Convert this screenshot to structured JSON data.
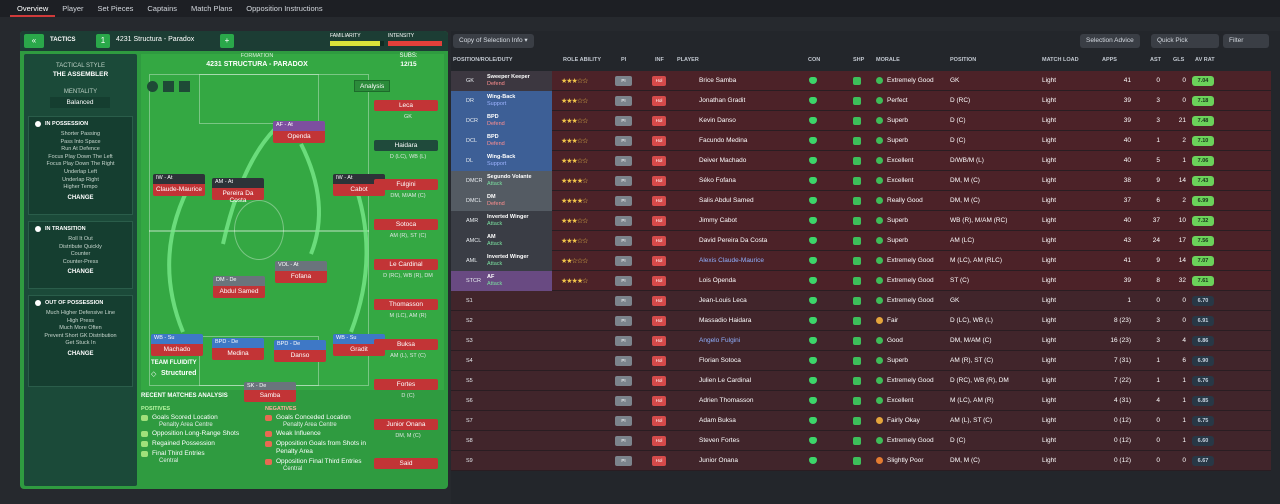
{
  "nav": {
    "tabs": [
      "Overview",
      "Player",
      "Set Pieces",
      "Captains",
      "Match Plans",
      "Opposition Instructions"
    ]
  },
  "tactics": {
    "label": "TACTICS",
    "slot": "1",
    "name": "4231 Structura - Paradox",
    "familiarity": "FAMILIARITY",
    "intensity": "INTENSITY",
    "formation_label": "FORMATION",
    "formation_name": "4231 STRUCTURA - PARADOX",
    "subs_label": "SUBS:",
    "subs_count": "12/15",
    "analysis": "Analysis"
  },
  "style": {
    "title": "TACTICAL STYLE",
    "name": "THE ASSEMBLER",
    "mentality_label": "MENTALITY",
    "mentality": "Balanced",
    "possession": {
      "title": "IN POSSESSION",
      "items": [
        "Shorter Passing",
        "Pass Into Space",
        "Run At Defence",
        "Focus Play Down The Left",
        "Focus Play Down The Right",
        "Underlap Left",
        "Underlap Right",
        "Higher Tempo"
      ],
      "change": "CHANGE"
    },
    "transition": {
      "title": "IN TRANSITION",
      "items": [
        "Roll It Out",
        "Distribute Quickly",
        "Counter",
        "Counter-Press"
      ],
      "change": "CHANGE"
    },
    "out": {
      "title": "OUT OF POSSESSION",
      "items": [
        "Much Higher Defensive Line",
        "High Press",
        "Much More Often",
        "Prevent Short GK Distribution",
        "Get Stuck In"
      ],
      "change": "CHANGE"
    }
  },
  "pitch": {
    "players": [
      {
        "role": "AF - At",
        "name": "Openda"
      },
      {
        "role": "IW - At",
        "name": "Claude-Maurice"
      },
      {
        "role": "AM - At",
        "name": "Pereira Da Costa"
      },
      {
        "role": "IW - At",
        "name": "Cabot"
      },
      {
        "role": "VOL - At",
        "name": "Fofana"
      },
      {
        "role": "DM - De",
        "name": "Abdul Samed"
      },
      {
        "role": "WB - Su",
        "name": "Machado"
      },
      {
        "role": "BPD - De",
        "name": "Medina"
      },
      {
        "role": "BPD - De",
        "name": "Danso"
      },
      {
        "role": "WB - Su",
        "name": "Gradit"
      },
      {
        "role": "SK - De",
        "name": "Samba"
      }
    ],
    "fluidity_label": "TEAM FLUIDITY",
    "fluidity": "Structured"
  },
  "subs": [
    {
      "name": "Leca",
      "pos": "GK"
    },
    {
      "name": "Haidara",
      "pos": "D (LC), WB (L)"
    },
    {
      "name": "Fulgini",
      "pos": "DM, M/AM (C)"
    },
    {
      "name": "Sotoca",
      "pos": "AM (R), ST (C)"
    },
    {
      "name": "Le Cardinal",
      "pos": "D (RC), WB (R), DM"
    },
    {
      "name": "Thomasson",
      "pos": "M (LC), AM (R)"
    },
    {
      "name": "Buksa",
      "pos": "AM (L), ST (C)"
    },
    {
      "name": "Fortes",
      "pos": "D (C)"
    },
    {
      "name": "Junior Onana",
      "pos": "DM, M (C)"
    },
    {
      "name": "Said",
      "pos": ""
    }
  ],
  "recent": {
    "title": "RECENT MATCHES ANALYSIS",
    "pos_label": "POSITIVES",
    "neg_label": "NEGATIVES",
    "positives": [
      {
        "t": "Goals Scored Location",
        "s": "Penalty Area Centre"
      },
      {
        "t": "Opposition Long-Range Shots",
        "s": ""
      },
      {
        "t": "Regained Possession",
        "s": ""
      },
      {
        "t": "Final Third Entries",
        "s": "Central"
      }
    ],
    "negatives": [
      {
        "t": "Goals Conceded Location",
        "s": "Penalty Area Centre"
      },
      {
        "t": "Weak Influence",
        "s": ""
      },
      {
        "t": "Opposition Goals from Shots in Penalty Area",
        "s": ""
      },
      {
        "t": "Opposition Final Third Entries",
        "s": "Central"
      }
    ]
  },
  "toolbar": {
    "copy": "Copy of Selection Info",
    "advice": "Selection Advice",
    "quickpick": "Quick Pick",
    "filter": "Filter"
  },
  "headers": [
    "POSITION/ROLE/DUTY",
    "ROLE ABILITY",
    "PI",
    "INF",
    "PLAYER",
    "CON",
    "SHP",
    "MORALE",
    "POSITION",
    "MATCH LOAD",
    "APPS",
    "AST",
    "GLS",
    "AV RAT"
  ],
  "rows": [
    {
      "pos": "GK",
      "role": "Sweeper Keeper",
      "duty": "Defend",
      "stars": "★★★☆☆",
      "name": "Brice Samba",
      "morale": "Extremely Good",
      "position": "GK",
      "load": "Light",
      "apps": "41",
      "ast": "0",
      "gls": "0",
      "rat": "7.04"
    },
    {
      "pos": "DR",
      "role": "Wing-Back",
      "duty": "Support",
      "stars": "★★★☆☆",
      "name": "Jonathan Gradit",
      "morale": "Perfect",
      "position": "D (RC)",
      "load": "Light",
      "apps": "39",
      "ast": "3",
      "gls": "0",
      "rat": "7.18"
    },
    {
      "pos": "DCR",
      "role": "BPD",
      "duty": "Defend",
      "stars": "★★★☆☆",
      "name": "Kevin Danso",
      "morale": "Superb",
      "position": "D (C)",
      "load": "Light",
      "apps": "39",
      "ast": "3",
      "gls": "21",
      "rat": "7.48"
    },
    {
      "pos": "DCL",
      "role": "BPD",
      "duty": "Defend",
      "stars": "★★★☆☆",
      "name": "Facundo Medina",
      "morale": "Superb",
      "position": "D (C)",
      "load": "Light",
      "apps": "40",
      "ast": "1",
      "gls": "2",
      "rat": "7.10"
    },
    {
      "pos": "DL",
      "role": "Wing-Back",
      "duty": "Support",
      "stars": "★★★☆☆",
      "name": "Deiver Machado",
      "morale": "Excellent",
      "position": "D/WB/M (L)",
      "load": "Light",
      "apps": "40",
      "ast": "5",
      "gls": "1",
      "rat": "7.06"
    },
    {
      "pos": "DMCR",
      "role": "Segundo Volante",
      "duty": "Attack",
      "stars": "★★★★☆",
      "name": "Séko Fofana",
      "morale": "Excellent",
      "position": "DM, M (C)",
      "load": "Light",
      "apps": "38",
      "ast": "9",
      "gls": "14",
      "rat": "7.43"
    },
    {
      "pos": "DMCL",
      "role": "DM",
      "duty": "Defend",
      "stars": "★★★★☆",
      "name": "Salis Abdul Samed",
      "morale": "Really Good",
      "position": "DM, M (C)",
      "load": "Light",
      "apps": "37",
      "ast": "6",
      "gls": "2",
      "rat": "6.99"
    },
    {
      "pos": "AMR",
      "role": "Inverted Winger",
      "duty": "Attack",
      "stars": "★★★☆☆",
      "name": "Jimmy Cabot",
      "morale": "Superb",
      "position": "WB (R), M/AM (RC)",
      "load": "Light",
      "apps": "40",
      "ast": "37",
      "gls": "10",
      "rat": "7.32"
    },
    {
      "pos": "AMCL",
      "role": "AM",
      "duty": "Attack",
      "stars": "★★★☆☆",
      "name": "David Pereira Da Costa",
      "morale": "Superb",
      "position": "AM (LC)",
      "load": "Light",
      "apps": "43",
      "ast": "24",
      "gls": "17",
      "rat": "7.56"
    },
    {
      "pos": "AML",
      "role": "Inverted Winger",
      "duty": "Attack",
      "stars": "★★☆☆☆",
      "name": "Alexis Claude-Maurice",
      "morale": "Extremely Good",
      "position": "M (LC), AM (RLC)",
      "load": "Light",
      "apps": "41",
      "ast": "9",
      "gls": "14",
      "rat": "7.07"
    },
    {
      "pos": "STCR",
      "role": "AF",
      "duty": "Attack",
      "stars": "★★★★☆",
      "name": "Lois Openda",
      "morale": "Extremely Good",
      "position": "ST (C)",
      "load": "Light",
      "apps": "39",
      "ast": "8",
      "gls": "32",
      "rat": "7.61"
    },
    {
      "pos": "S1",
      "role": "",
      "duty": "",
      "stars": "",
      "name": "Jean-Louis Leca",
      "morale": "Extremely Good",
      "position": "GK",
      "load": "Light",
      "apps": "1",
      "ast": "0",
      "gls": "0",
      "rat": "6.70"
    },
    {
      "pos": "S2",
      "role": "",
      "duty": "",
      "stars": "",
      "name": "Massadio Haidara",
      "morale": "Fair",
      "position": "D (LC), WB (L)",
      "load": "Light",
      "apps": "8 (23)",
      "ast": "3",
      "gls": "0",
      "rat": "6.91"
    },
    {
      "pos": "S3",
      "role": "",
      "duty": "",
      "stars": "",
      "name": "Angelo Fulgini",
      "morale": "Good",
      "position": "DM, M/AM (C)",
      "load": "Light",
      "apps": "16 (23)",
      "ast": "3",
      "gls": "4",
      "rat": "6.86"
    },
    {
      "pos": "S4",
      "role": "",
      "duty": "",
      "stars": "",
      "name": "Florian Sotoca",
      "morale": "Superb",
      "position": "AM (R), ST (C)",
      "load": "Light",
      "apps": "7 (31)",
      "ast": "1",
      "gls": "6",
      "rat": "6.90"
    },
    {
      "pos": "S5",
      "role": "",
      "duty": "",
      "stars": "",
      "name": "Julien Le Cardinal",
      "morale": "Extremely Good",
      "position": "D (RC), WB (R), DM",
      "load": "Light",
      "apps": "7 (22)",
      "ast": "1",
      "gls": "1",
      "rat": "6.76"
    },
    {
      "pos": "S6",
      "role": "",
      "duty": "",
      "stars": "",
      "name": "Adrien Thomasson",
      "morale": "Excellent",
      "position": "M (LC), AM (R)",
      "load": "Light",
      "apps": "4 (31)",
      "ast": "4",
      "gls": "1",
      "rat": "6.85"
    },
    {
      "pos": "S7",
      "role": "",
      "duty": "",
      "stars": "",
      "name": "Adam Buksa",
      "morale": "Fairly Okay",
      "position": "AM (L), ST (C)",
      "load": "Light",
      "apps": "0 (12)",
      "ast": "0",
      "gls": "1",
      "rat": "6.75"
    },
    {
      "pos": "S8",
      "role": "",
      "duty": "",
      "stars": "",
      "name": "Steven Fortes",
      "morale": "Extremely Good",
      "position": "D (C)",
      "load": "Light",
      "apps": "0 (12)",
      "ast": "0",
      "gls": "1",
      "rat": "6.60"
    },
    {
      "pos": "S9",
      "role": "",
      "duty": "",
      "stars": "",
      "name": "Junior Onana",
      "morale": "Slightly Poor",
      "position": "DM, M (C)",
      "load": "Light",
      "apps": "0 (12)",
      "ast": "0",
      "gls": "0",
      "rat": "6.67"
    }
  ]
}
